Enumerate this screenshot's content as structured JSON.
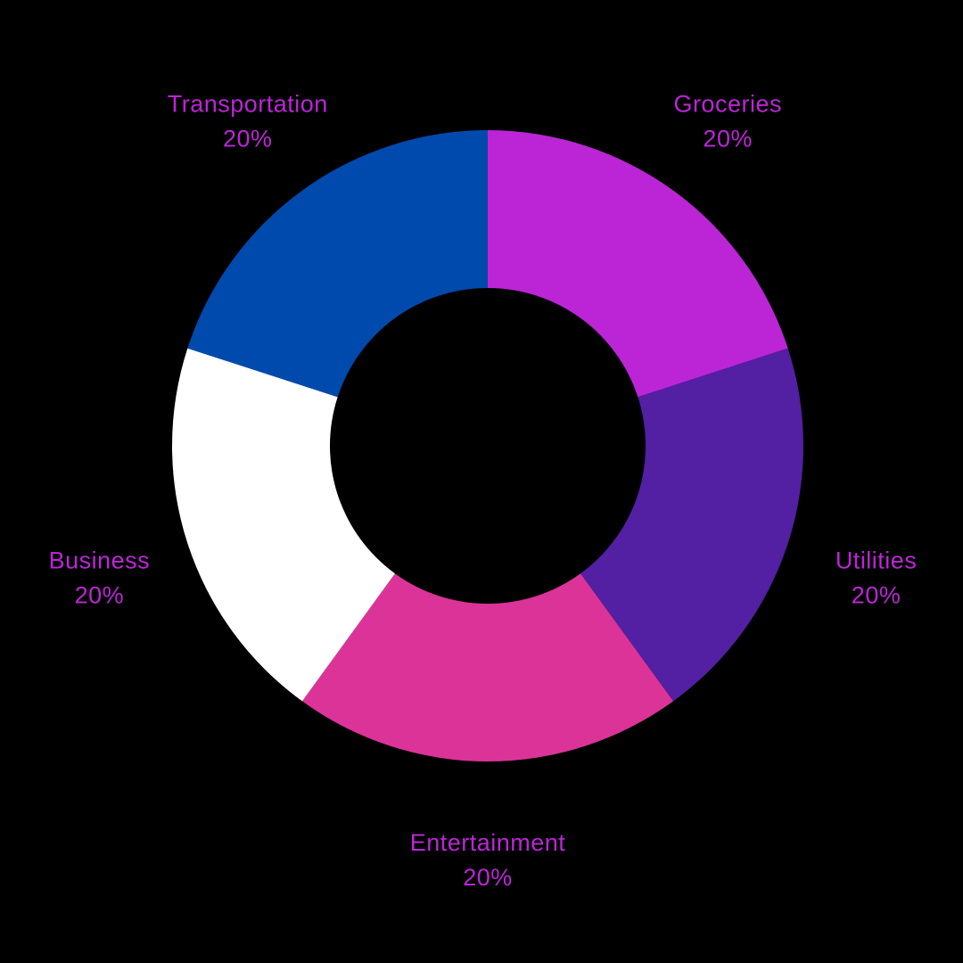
{
  "chart_data": {
    "type": "pie",
    "variant": "donut",
    "categories": [
      "Groceries",
      "Utilities",
      "Entertainment",
      "Business",
      "Transportation"
    ],
    "values": [
      20,
      20,
      20,
      20,
      20
    ],
    "value_labels": [
      "20%",
      "20%",
      "20%",
      "20%",
      "20%"
    ],
    "colors": [
      "#bc25d6",
      "#531fa3",
      "#dc3399",
      "#ffffff",
      "#004aad"
    ],
    "label_color": "#bc25d6",
    "background": "#000000",
    "legend": "none"
  }
}
